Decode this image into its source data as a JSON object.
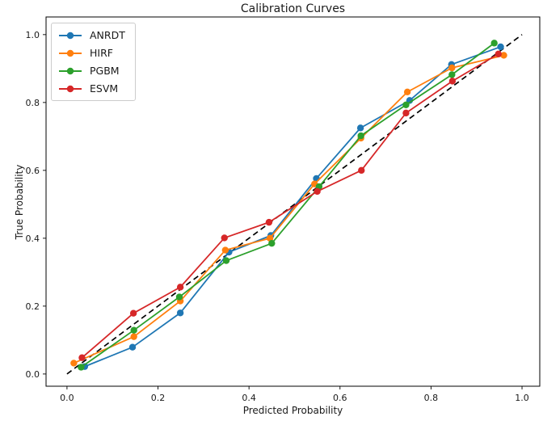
{
  "figure": {
    "title": "Calibration Curves",
    "xlabel": "Predicted Probability",
    "ylabel": "True Probability"
  },
  "chart_data": {
    "type": "line",
    "title": "Calibration Curves",
    "xlabel": "Predicted Probability",
    "ylabel": "True Probability",
    "xlim": [
      -0.046,
      1.039
    ],
    "ylim": [
      -0.036,
      1.052
    ],
    "xticks": [
      0.0,
      0.2,
      0.4,
      0.6,
      0.8,
      1.0
    ],
    "yticks": [
      0.0,
      0.2,
      0.4,
      0.6,
      0.8,
      1.0
    ],
    "grid": false,
    "legend_position": "upper-left",
    "text_color": "#1a1a1a",
    "reference_line": {
      "name": "perfect-calibration-diagonal",
      "style": "dashed",
      "color": "#000000",
      "points": [
        [
          0.0,
          0.0
        ],
        [
          1.0,
          1.0
        ]
      ]
    },
    "series": [
      {
        "name": "ANRDT",
        "color": "#1f77b4",
        "marker": "circle",
        "x": [
          0.039,
          0.144,
          0.249,
          0.356,
          0.448,
          0.548,
          0.645,
          0.753,
          0.845,
          0.953
        ],
        "y": [
          0.022,
          0.079,
          0.18,
          0.359,
          0.408,
          0.576,
          0.725,
          0.806,
          0.912,
          0.964
        ]
      },
      {
        "name": "HIRF",
        "color": "#ff7f0e",
        "marker": "circle",
        "x": [
          0.015,
          0.147,
          0.249,
          0.348,
          0.446,
          0.544,
          0.646,
          0.748,
          0.846,
          0.96
        ],
        "y": [
          0.032,
          0.11,
          0.215,
          0.365,
          0.4,
          0.56,
          0.695,
          0.831,
          0.902,
          0.939
        ]
      },
      {
        "name": "PGBM",
        "color": "#2ca02c",
        "marker": "circle",
        "x": [
          0.031,
          0.147,
          0.247,
          0.35,
          0.45,
          0.554,
          0.646,
          0.745,
          0.846,
          0.939
        ],
        "y": [
          0.02,
          0.129,
          0.227,
          0.334,
          0.385,
          0.552,
          0.702,
          0.793,
          0.882,
          0.975
        ]
      },
      {
        "name": "ESVM",
        "color": "#d62728",
        "marker": "circle",
        "x": [
          0.033,
          0.146,
          0.249,
          0.346,
          0.444,
          0.55,
          0.647,
          0.745,
          0.847,
          0.948
        ],
        "y": [
          0.048,
          0.179,
          0.256,
          0.401,
          0.447,
          0.538,
          0.6,
          0.769,
          0.863,
          0.943
        ]
      }
    ]
  }
}
